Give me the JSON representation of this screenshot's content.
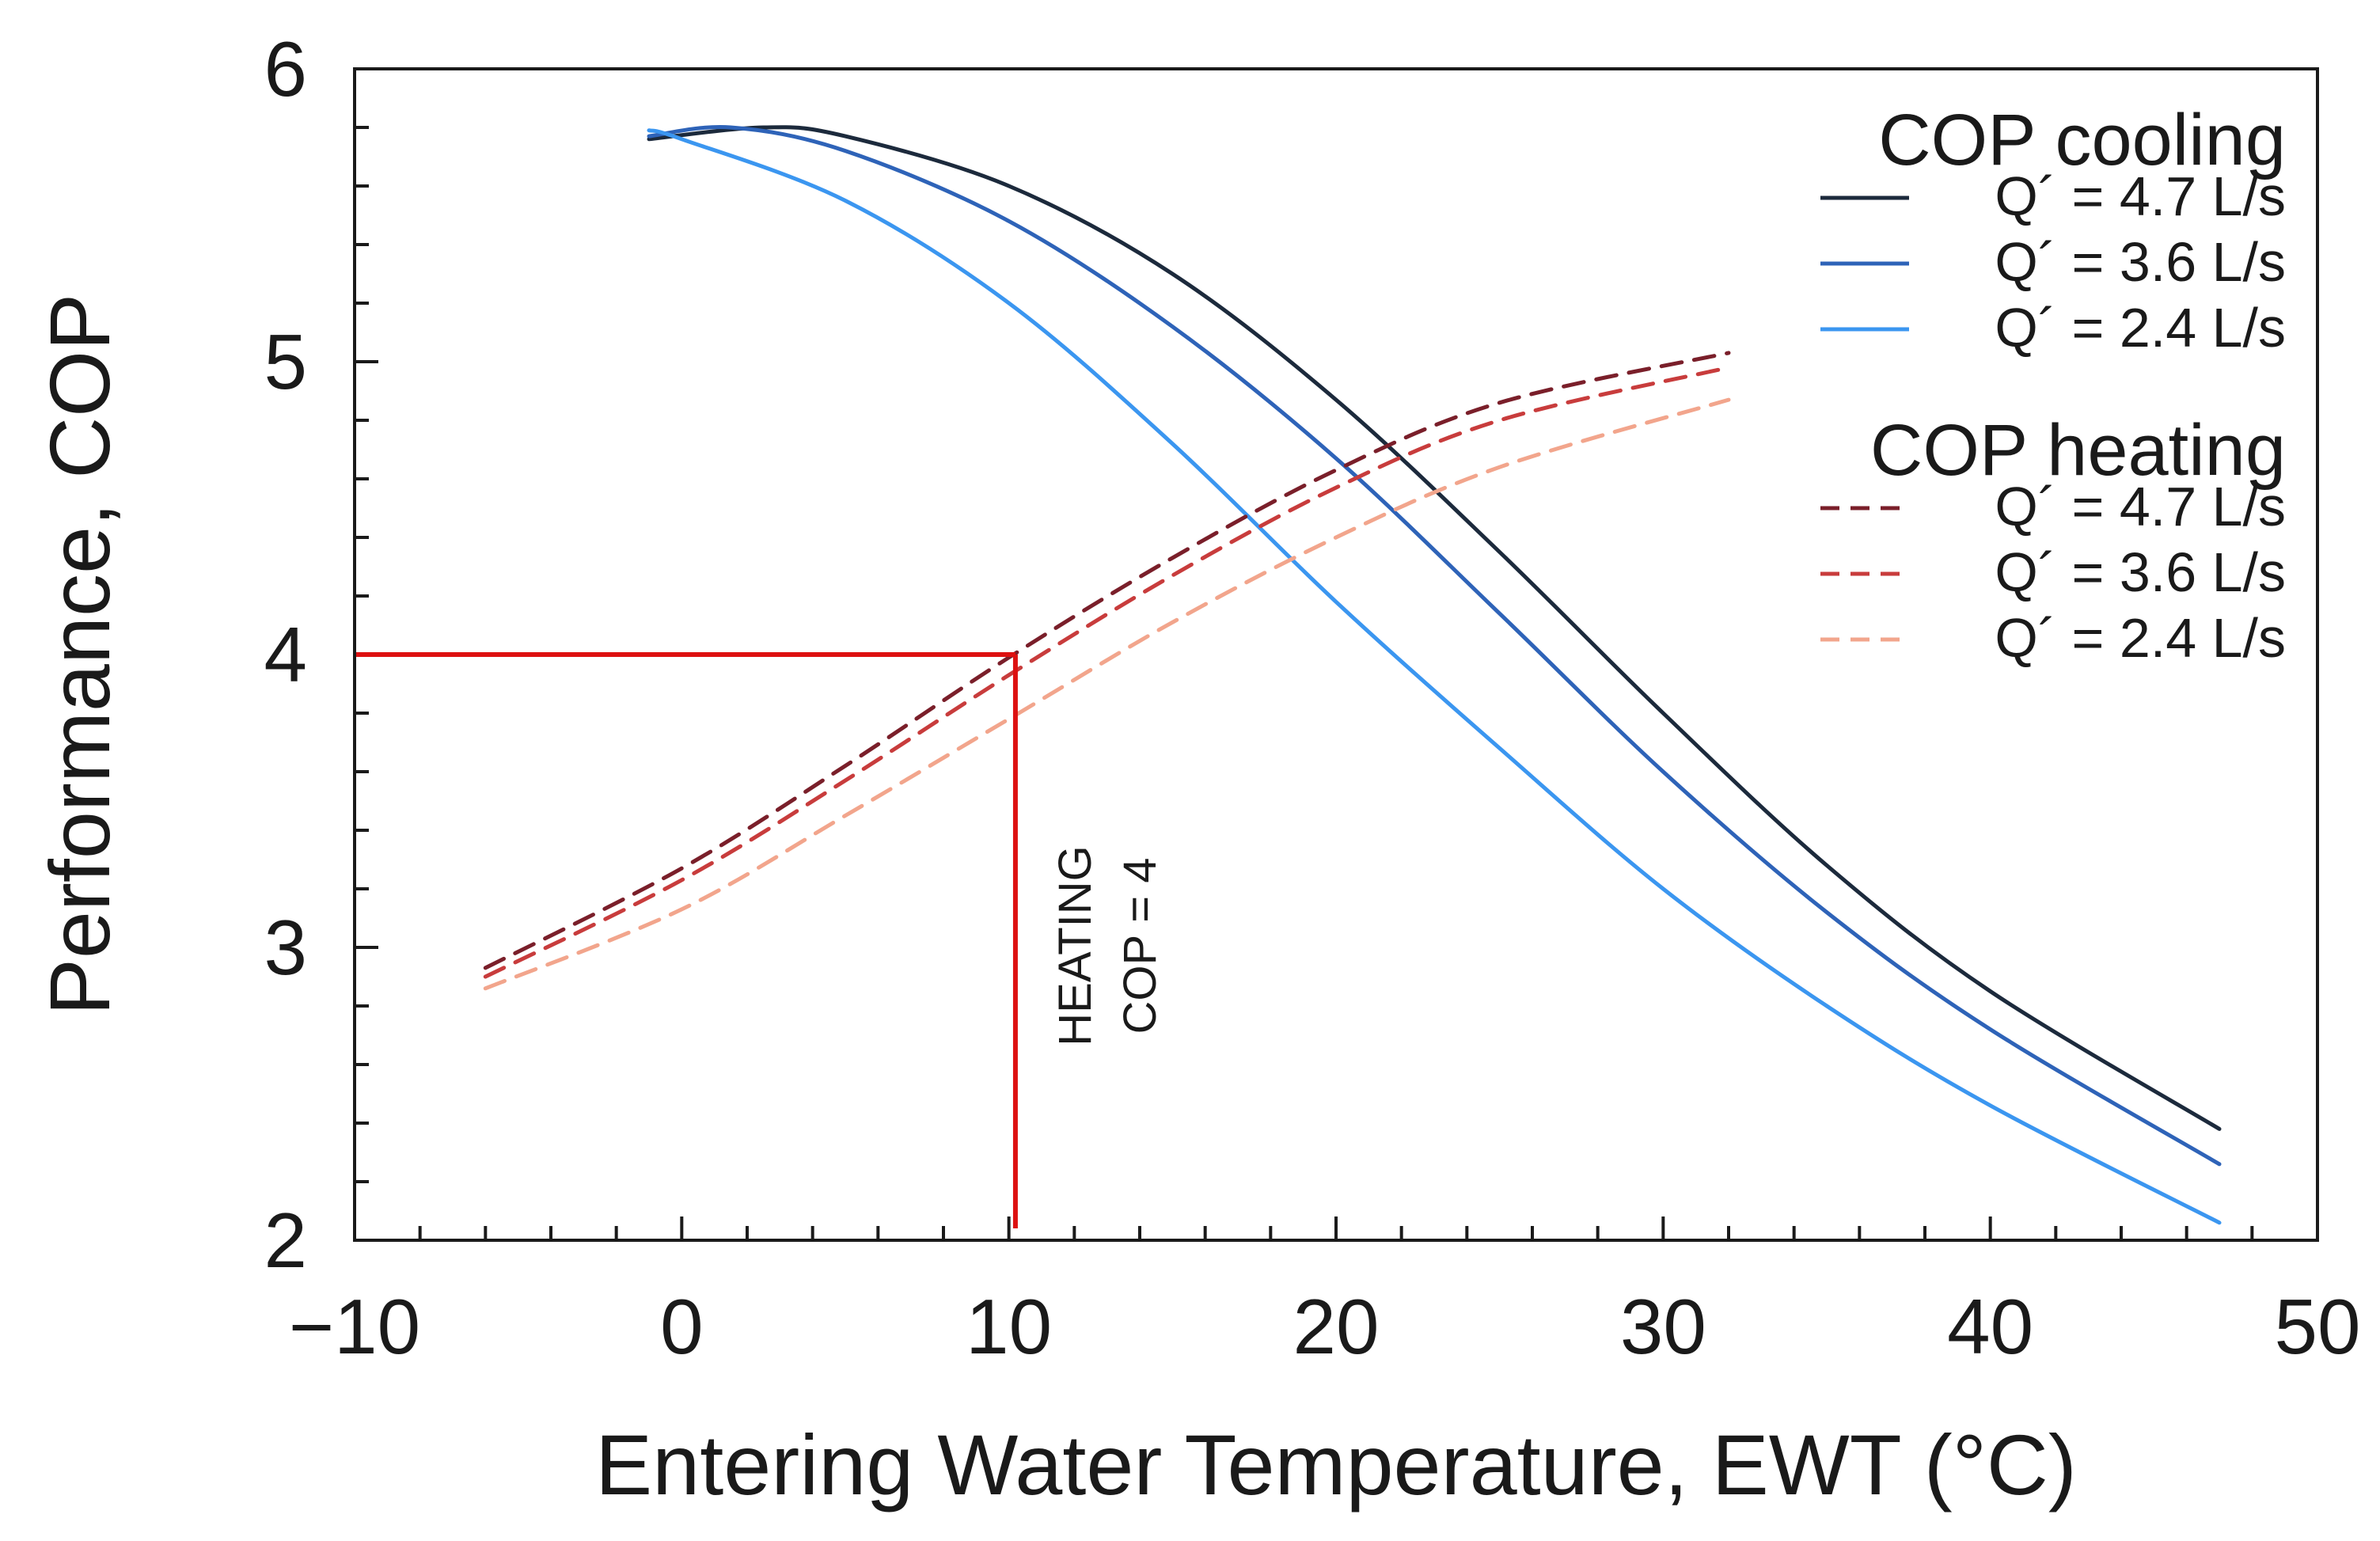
{
  "chart_data": {
    "type": "line",
    "title": "",
    "xlabel": "Entering Water Temperature, EWT (°C)",
    "ylabel": "Performance, COP",
    "xlim": [
      -10,
      50
    ],
    "ylim": [
      2,
      6
    ],
    "x_ticks": [
      "−10",
      "0",
      "10",
      "20",
      "30",
      "40",
      "50"
    ],
    "y_ticks": [
      "2",
      "3",
      "4",
      "5",
      "6"
    ],
    "legend": {
      "placement": "top-right",
      "groups": [
        {
          "title": "COP cooling",
          "entries": [
            "Q´ = 4.7 L/s",
            "Q´ = 3.6 L/s",
            "Q´ = 2.4 L/s"
          ]
        },
        {
          "title": "COP heating",
          "entries": [
            "Q´ = 4.7 L/s",
            "Q´ = 3.6 L/s",
            "Q´ = 2.4 L/s"
          ]
        }
      ]
    },
    "series": [
      {
        "name": "COP cooling Q´ = 4.7 L/s",
        "group": "cooling",
        "color": "#1c2a3c",
        "dash": false,
        "x": [
          -1,
          2.5,
          5,
          10,
          15,
          20,
          25,
          30,
          35,
          40,
          47
        ],
        "y": [
          5.76,
          5.8,
          5.77,
          5.6,
          5.3,
          4.87,
          4.35,
          3.8,
          3.28,
          2.85,
          2.38
        ]
      },
      {
        "name": "COP cooling Q´ = 3.6 L/s",
        "group": "cooling",
        "color": "#2e63b8",
        "dash": false,
        "x": [
          -1,
          1.5,
          5,
          10,
          15,
          20,
          25,
          30,
          35,
          40,
          47
        ],
        "y": [
          5.77,
          5.8,
          5.72,
          5.48,
          5.12,
          4.67,
          4.14,
          3.6,
          3.12,
          2.72,
          2.26
        ]
      },
      {
        "name": "COP cooling Q´ = 2.4 L/s",
        "group": "cooling",
        "color": "#3b96f0",
        "dash": false,
        "x": [
          -1,
          0,
          5,
          10,
          15,
          20,
          25,
          30,
          35,
          40,
          47
        ],
        "y": [
          5.79,
          5.76,
          5.55,
          5.2,
          4.72,
          4.18,
          3.68,
          3.2,
          2.8,
          2.46,
          2.06
        ]
      },
      {
        "name": "COP heating Q´ = 4.7 L/s",
        "group": "heating",
        "color": "#7a1f2a",
        "dash": true,
        "x": [
          -6,
          0,
          5,
          10,
          15,
          20,
          25,
          32
        ],
        "y": [
          2.93,
          3.27,
          3.62,
          3.99,
          4.33,
          4.63,
          4.86,
          5.03
        ]
      },
      {
        "name": "COP heating Q´ = 3.6 L/s",
        "group": "heating",
        "color": "#c83c3c",
        "dash": true,
        "x": [
          -6,
          0,
          5,
          10,
          15,
          20,
          25,
          32
        ],
        "y": [
          2.9,
          3.23,
          3.57,
          3.93,
          4.27,
          4.57,
          4.8,
          4.98
        ]
      },
      {
        "name": "COP heating Q´ = 2.4 L/s",
        "group": "heating",
        "color": "#f2a58c",
        "dash": true,
        "x": [
          -6,
          0,
          5,
          10,
          15,
          20,
          25,
          32
        ],
        "y": [
          2.86,
          3.13,
          3.45,
          3.78,
          4.11,
          4.4,
          4.64,
          4.87
        ]
      }
    ],
    "annotation": {
      "text_lines": [
        "HEATING",
        "COP = 4"
      ],
      "x": 10.2,
      "y": 4.0,
      "color": "#dd1111"
    }
  }
}
